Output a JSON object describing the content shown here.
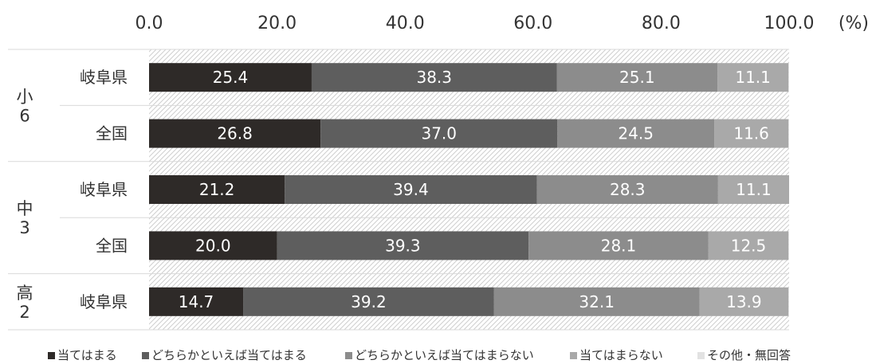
{
  "chart_data": {
    "type": "bar",
    "orientation": "horizontal-stacked",
    "x_ticks": [
      "0.0",
      "20.0",
      "40.0",
      "60.0",
      "80.0",
      "100.0"
    ],
    "unit": "(%)",
    "xlim": [
      0,
      100
    ],
    "grid": false,
    "legend_position": "bottom",
    "rows": [
      {
        "group": "小6",
        "group_chars": [
          "小",
          "6"
        ],
        "label": "岐阜県",
        "values": [
          25.4,
          38.3,
          25.1,
          11.1,
          0.1
        ]
      },
      {
        "group": "小6",
        "group_chars": [
          "小",
          "6"
        ],
        "label": "全国",
        "values": [
          26.8,
          37.0,
          24.5,
          11.6,
          0.1
        ]
      },
      {
        "group": "中3",
        "group_chars": [
          "中",
          "3"
        ],
        "label": "岐阜県",
        "values": [
          21.2,
          39.4,
          28.3,
          11.1,
          0.0
        ]
      },
      {
        "group": "中3",
        "group_chars": [
          "中",
          "3"
        ],
        "label": "全国",
        "values": [
          20.0,
          39.3,
          28.1,
          12.5,
          0.1
        ]
      },
      {
        "group": "高2",
        "group_chars": [
          "高",
          "2"
        ],
        "label": "岐阜県",
        "values": [
          14.7,
          39.2,
          32.1,
          13.9,
          0.1
        ]
      }
    ],
    "series": [
      {
        "name": "当てはまる",
        "color": "#2e2a28"
      },
      {
        "name": "どちらかといえば当てはまる",
        "color": "#5e5e5e"
      },
      {
        "name": "どちらかといえば当てはまらない",
        "color": "#8c8c8c"
      },
      {
        "name": "当てはまらない",
        "color": "#a9a9a9"
      },
      {
        "name": "その他・無回答",
        "color": "#e2e2e2"
      }
    ],
    "value_label_color": "#ffffff"
  }
}
